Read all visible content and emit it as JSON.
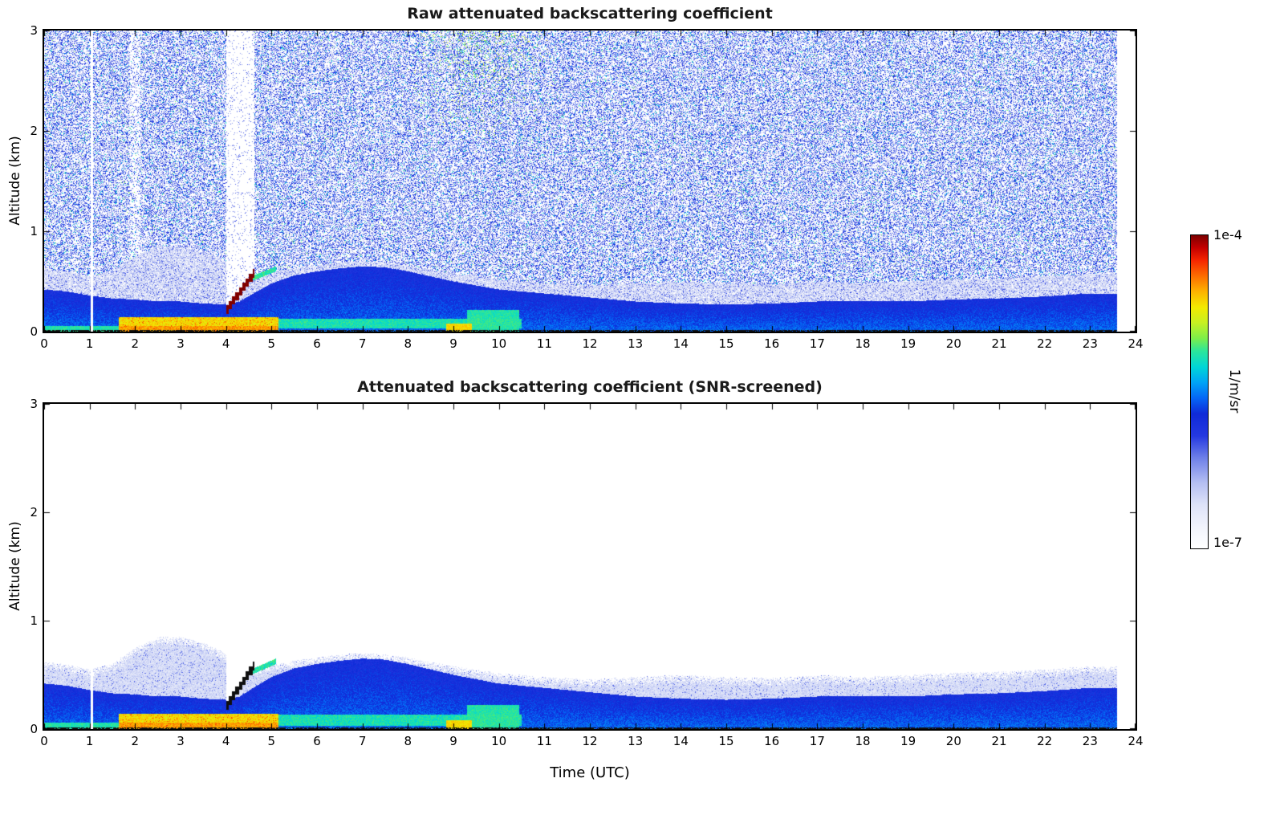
{
  "chart_data": [
    {
      "type": "heatmap",
      "title": "Raw attenuated backscattering coefficient",
      "xlabel": "Time (UTC)",
      "ylabel": "Altitude (km)",
      "xlim": [
        0,
        24
      ],
      "ylim": [
        0,
        3
      ],
      "xticks": [
        0,
        1,
        2,
        3,
        4,
        5,
        6,
        7,
        8,
        9,
        10,
        11,
        12,
        13,
        14,
        15,
        16,
        17,
        18,
        19,
        20,
        21,
        22,
        23,
        24
      ],
      "yticks": [
        0,
        1,
        2,
        3
      ],
      "value_scale": "log10",
      "colorbar": {
        "label": "1/m/sr",
        "vmin": 1e-07,
        "vmax": 0.0001,
        "min_label": "1e-7",
        "max_label": "1e-4"
      },
      "noise_screened": false,
      "data_end_hour": 23.6,
      "colormap_stops": [
        {
          "t": 0.0,
          "color": "#ffffff"
        },
        {
          "t": 0.07,
          "color": "#f1f3fc"
        },
        {
          "t": 0.14,
          "color": "#dde2f8"
        },
        {
          "t": 0.21,
          "color": "#b4bef2"
        },
        {
          "t": 0.29,
          "color": "#6d7fe8"
        },
        {
          "t": 0.36,
          "color": "#2438e0"
        },
        {
          "t": 0.43,
          "color": "#0f2ad8"
        },
        {
          "t": 0.48,
          "color": "#0566f6"
        },
        {
          "t": 0.53,
          "color": "#00a4f6"
        },
        {
          "t": 0.58,
          "color": "#00d6d6"
        },
        {
          "t": 0.63,
          "color": "#2be69b"
        },
        {
          "t": 0.67,
          "color": "#7bee4b"
        },
        {
          "t": 0.72,
          "color": "#c6f122"
        },
        {
          "t": 0.77,
          "color": "#f3ea00"
        },
        {
          "t": 0.82,
          "color": "#fdb300"
        },
        {
          "t": 0.87,
          "color": "#fc6d00"
        },
        {
          "t": 0.92,
          "color": "#f52500"
        },
        {
          "t": 0.96,
          "color": "#c40000"
        },
        {
          "t": 1.0,
          "color": "#7c0000"
        }
      ],
      "features": {
        "boundary_layer_top_km": {
          "hours": [
            0,
            0.5,
            1,
            1.5,
            2,
            2.5,
            3,
            3.5,
            4,
            4.3,
            4.6,
            5,
            5.5,
            6,
            6.5,
            7,
            7.5,
            8,
            8.5,
            9,
            9.5,
            10,
            10.5,
            11,
            11.5,
            12,
            13,
            14,
            15,
            16,
            17,
            18,
            19,
            20,
            21,
            22,
            23,
            23.6
          ],
          "tops": [
            0.42,
            0.4,
            0.36,
            0.33,
            0.32,
            0.3,
            0.3,
            0.28,
            0.27,
            0.3,
            0.38,
            0.48,
            0.56,
            0.6,
            0.63,
            0.65,
            0.64,
            0.6,
            0.55,
            0.5,
            0.46,
            0.42,
            0.4,
            0.38,
            0.36,
            0.34,
            0.3,
            0.28,
            0.27,
            0.28,
            0.3,
            0.3,
            0.3,
            0.32,
            0.33,
            0.35,
            0.38,
            0.38
          ]
        },
        "haze_top_km": {
          "hours": [
            0,
            0.5,
            1,
            1.5,
            2,
            2.5,
            3,
            3.5,
            4,
            4.3,
            4.6,
            5,
            5.5,
            6,
            6.5,
            7,
            7.5,
            8,
            8.5,
            9,
            9.5,
            10,
            10.5,
            11,
            11.5,
            12,
            13,
            14,
            15,
            16,
            17,
            18,
            19,
            20,
            21,
            22,
            23,
            23.6
          ],
          "tops": [
            0.62,
            0.6,
            0.55,
            0.6,
            0.75,
            0.85,
            0.85,
            0.8,
            0.7,
            0.55,
            0.55,
            0.6,
            0.63,
            0.66,
            0.69,
            0.7,
            0.69,
            0.66,
            0.62,
            0.58,
            0.55,
            0.52,
            0.5,
            0.48,
            0.47,
            0.46,
            0.48,
            0.5,
            0.48,
            0.47,
            0.5,
            0.48,
            0.5,
            0.52,
            0.53,
            0.55,
            0.58,
            0.58
          ]
        },
        "surface_strong_layer": {
          "t0": 1.65,
          "t1": 5.15,
          "top_km": 0.14,
          "log10_val": -4.8
        },
        "surface_cyan_layer": {
          "t0": 5.15,
          "t1": 10.5,
          "top_km": 0.13,
          "log10_val": -5.3
        },
        "yellow_dash": {
          "t0": 8.85,
          "t1": 9.4,
          "top_km": 0.08,
          "log10_val": -4.75
        },
        "green_bump": {
          "t0": 9.3,
          "t1": 10.45,
          "top_km": 0.22
        },
        "cloud_event": {
          "t0": 4.0,
          "t1": 4.62,
          "base0_km": 0.17,
          "base1_km": 0.54,
          "thickness_km": 0.08,
          "log10_val": -4.05
        },
        "post_cloud_arc": {
          "t0": 4.55,
          "t1": 5.1,
          "base0_km": 0.5,
          "base1_km": 0.6,
          "thickness_km": 0.05,
          "log10_val": -5.3
        },
        "thin_data_gap_hour": 1.05,
        "reduced_noise_band": {
          "t0": 1.88,
          "t1": 2.12
        },
        "noise_speckle": {
          "coverage": 0.45,
          "log10_range": [
            -6.55,
            -5.6
          ]
        },
        "elevated_green_noise_patch": {
          "t0": 8.0,
          "t1": 11.2,
          "alt0_km": 1.9,
          "alt1_km": 3.0,
          "log10_val": -5.2
        },
        "surface_black_line_km": 0.016
      }
    },
    {
      "type": "heatmap",
      "title": "Attenuated backscattering coefficient (SNR-screened)",
      "xlabel": "Time (UTC)",
      "ylabel": "Altitude (km)",
      "xlim": [
        0,
        24
      ],
      "ylim": [
        0,
        3
      ],
      "xticks": [
        0,
        1,
        2,
        3,
        4,
        5,
        6,
        7,
        8,
        9,
        10,
        11,
        12,
        13,
        14,
        15,
        16,
        17,
        18,
        19,
        20,
        21,
        22,
        23,
        24
      ],
      "yticks": [
        0,
        1,
        2,
        3
      ],
      "value_scale": "log10",
      "colorbar": {
        "label": "1/m/sr",
        "vmin": 1e-07,
        "vmax": 0.0001,
        "min_label": "1e-7",
        "max_label": "1e-4"
      },
      "noise_screened": true,
      "data_end_hour": 23.6,
      "features_same_as": "chart_data.0.features"
    }
  ]
}
